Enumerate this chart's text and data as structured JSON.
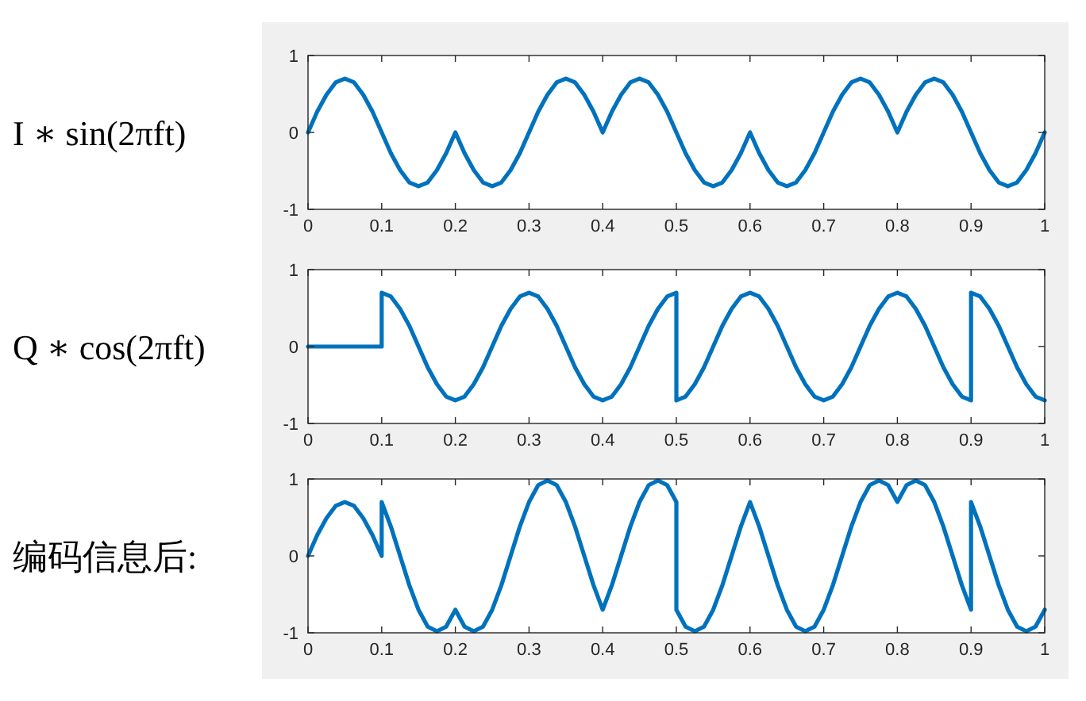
{
  "chart_data": [
    {
      "type": "line",
      "ylabel": "I ∗ sin(2πft)",
      "xlim": [
        0,
        1
      ],
      "ylim": [
        -1,
        1
      ],
      "xticks": [
        0,
        0.1,
        0.2,
        0.3,
        0.4,
        0.5,
        0.6,
        0.7,
        0.8,
        0.9,
        1
      ],
      "yticks": [
        -1,
        0,
        1
      ],
      "grid": false,
      "series": [
        {
          "color": "#0072bd",
          "x": [
            0,
            0.0125,
            0.025,
            0.0375,
            0.05,
            0.0625,
            0.075,
            0.0875,
            0.1,
            0.1125,
            0.125,
            0.1375,
            0.15,
            0.1625,
            0.175,
            0.1875,
            0.2,
            0.2125,
            0.225,
            0.2375,
            0.25,
            0.2625,
            0.275,
            0.2875,
            0.3,
            0.3125,
            0.325,
            0.3375,
            0.35,
            0.3625,
            0.375,
            0.3875,
            0.4,
            0.4125,
            0.425,
            0.4375,
            0.45,
            0.4625,
            0.475,
            0.4875,
            0.5,
            0.5125,
            0.525,
            0.5375,
            0.55,
            0.5625,
            0.575,
            0.5875,
            0.6,
            0.6125,
            0.625,
            0.6375,
            0.65,
            0.6625,
            0.675,
            0.6875,
            0.7,
            0.7125,
            0.725,
            0.7375,
            0.75,
            0.7625,
            0.775,
            0.7875,
            0.8,
            0.8125,
            0.825,
            0.8375,
            0.85,
            0.8625,
            0.875,
            0.8875,
            0.9,
            0.9125,
            0.925,
            0.9375,
            0.95,
            0.9625,
            0.975,
            0.9875,
            1
          ],
          "values": [
            0,
            0.27,
            0.49,
            0.65,
            0.7,
            0.65,
            0.49,
            0.27,
            0,
            -0.27,
            -0.49,
            -0.65,
            -0.7,
            -0.65,
            -0.49,
            -0.27,
            0,
            -0.27,
            -0.49,
            -0.65,
            -0.7,
            -0.65,
            -0.49,
            -0.27,
            0,
            0.27,
            0.49,
            0.65,
            0.7,
            0.65,
            0.49,
            0.27,
            0,
            0.27,
            0.49,
            0.65,
            0.7,
            0.65,
            0.49,
            0.27,
            0,
            -0.27,
            -0.49,
            -0.65,
            -0.7,
            -0.65,
            -0.49,
            -0.27,
            0,
            -0.27,
            -0.49,
            -0.65,
            -0.7,
            -0.65,
            -0.49,
            -0.27,
            0,
            0.27,
            0.49,
            0.65,
            0.7,
            0.65,
            0.49,
            0.27,
            0,
            0.27,
            0.49,
            0.65,
            0.7,
            0.65,
            0.49,
            0.27,
            0,
            -0.27,
            -0.49,
            -0.65,
            -0.7,
            -0.65,
            -0.49,
            -0.27,
            0
          ]
        }
      ]
    },
    {
      "type": "line",
      "ylabel": "Q ∗ cos(2πft)",
      "xlim": [
        0,
        1
      ],
      "ylim": [
        -1,
        1
      ],
      "xticks": [
        0,
        0.1,
        0.2,
        0.3,
        0.4,
        0.5,
        0.6,
        0.7,
        0.8,
        0.9,
        1
      ],
      "yticks": [
        -1,
        0,
        1
      ],
      "grid": false,
      "series": [
        {
          "color": "#0072bd",
          "x": [
            0,
            0.1,
            0.1,
            0.1125,
            0.125,
            0.1375,
            0.15,
            0.1625,
            0.175,
            0.1875,
            0.2,
            0.2125,
            0.225,
            0.2375,
            0.25,
            0.2625,
            0.275,
            0.2875,
            0.3,
            0.3125,
            0.325,
            0.3375,
            0.35,
            0.3625,
            0.375,
            0.3875,
            0.4,
            0.4125,
            0.425,
            0.4375,
            0.45,
            0.4625,
            0.475,
            0.4875,
            0.5,
            0.5,
            0.5125,
            0.525,
            0.5375,
            0.55,
            0.5625,
            0.575,
            0.5875,
            0.6,
            0.6125,
            0.625,
            0.6375,
            0.65,
            0.6625,
            0.675,
            0.6875,
            0.7,
            0.7125,
            0.725,
            0.7375,
            0.75,
            0.7625,
            0.775,
            0.7875,
            0.8,
            0.8125,
            0.825,
            0.8375,
            0.85,
            0.8625,
            0.875,
            0.8875,
            0.9,
            0.9,
            0.9125,
            0.925,
            0.9375,
            0.95,
            0.9625,
            0.975,
            0.9875,
            1
          ],
          "values": [
            0,
            0,
            0.7,
            0.65,
            0.49,
            0.27,
            0,
            -0.27,
            -0.49,
            -0.65,
            -0.7,
            -0.65,
            -0.49,
            -0.27,
            0,
            0.27,
            0.49,
            0.65,
            0.7,
            0.65,
            0.49,
            0.27,
            0,
            -0.27,
            -0.49,
            -0.65,
            -0.7,
            -0.65,
            -0.49,
            -0.27,
            0,
            0.27,
            0.49,
            0.65,
            0.7,
            -0.7,
            -0.65,
            -0.49,
            -0.27,
            0,
            0.27,
            0.49,
            0.65,
            0.7,
            0.65,
            0.49,
            0.27,
            0,
            -0.27,
            -0.49,
            -0.65,
            -0.7,
            -0.65,
            -0.49,
            -0.27,
            0,
            0.27,
            0.49,
            0.65,
            0.7,
            0.65,
            0.49,
            0.27,
            0,
            -0.27,
            -0.49,
            -0.65,
            -0.7,
            0.7,
            0.65,
            0.49,
            0.27,
            0,
            -0.27,
            -0.49,
            -0.65,
            -0.7
          ]
        }
      ]
    },
    {
      "type": "line",
      "ylabel": "编码信息后:",
      "xlim": [
        0,
        1
      ],
      "ylim": [
        -1,
        1
      ],
      "xticks": [
        0,
        0.1,
        0.2,
        0.3,
        0.4,
        0.5,
        0.6,
        0.7,
        0.8,
        0.9,
        1
      ],
      "yticks": [
        -1,
        0,
        1
      ],
      "grid": false,
      "series": [
        {
          "color": "#0072bd",
          "x": [
            0,
            0.0125,
            0.025,
            0.0375,
            0.05,
            0.0625,
            0.075,
            0.0875,
            0.1,
            0.1,
            0.1125,
            0.125,
            0.1375,
            0.15,
            0.1625,
            0.175,
            0.1875,
            0.2,
            0.2125,
            0.225,
            0.2375,
            0.25,
            0.2625,
            0.275,
            0.2875,
            0.3,
            0.3125,
            0.325,
            0.3375,
            0.35,
            0.3625,
            0.375,
            0.3875,
            0.4,
            0.4125,
            0.425,
            0.4375,
            0.45,
            0.4625,
            0.475,
            0.4875,
            0.5,
            0.5,
            0.5125,
            0.525,
            0.5375,
            0.55,
            0.5625,
            0.575,
            0.5875,
            0.6,
            0.6125,
            0.625,
            0.6375,
            0.65,
            0.6625,
            0.675,
            0.6875,
            0.7,
            0.7125,
            0.725,
            0.7375,
            0.75,
            0.7625,
            0.775,
            0.7875,
            0.8,
            0.8125,
            0.825,
            0.8375,
            0.85,
            0.8625,
            0.875,
            0.8875,
            0.9,
            0.9,
            0.9125,
            0.925,
            0.9375,
            0.95,
            0.9625,
            0.975,
            0.9875,
            1
          ],
          "values": [
            0,
            0.27,
            0.49,
            0.65,
            0.7,
            0.65,
            0.49,
            0.27,
            0,
            0.7,
            0.38,
            0,
            -0.38,
            -0.7,
            -0.92,
            -0.98,
            -0.92,
            -0.7,
            -0.92,
            -0.98,
            -0.92,
            -0.7,
            -0.38,
            0,
            0.38,
            0.7,
            0.92,
            0.98,
            0.92,
            0.7,
            0.38,
            0,
            -0.38,
            -0.7,
            -0.38,
            0,
            0.38,
            0.7,
            0.92,
            0.98,
            0.92,
            0.7,
            -0.7,
            -0.92,
            -0.98,
            -0.92,
            -0.7,
            -0.38,
            0,
            0.38,
            0.7,
            0.38,
            0,
            -0.38,
            -0.7,
            -0.92,
            -0.98,
            -0.92,
            -0.7,
            -0.38,
            0,
            0.38,
            0.7,
            0.92,
            0.98,
            0.92,
            0.7,
            0.92,
            0.98,
            0.92,
            0.7,
            0.38,
            0,
            -0.38,
            -0.7,
            0.7,
            0.38,
            0,
            -0.38,
            -0.7,
            -0.92,
            -0.98,
            -0.92,
            -0.7
          ]
        }
      ]
    }
  ]
}
